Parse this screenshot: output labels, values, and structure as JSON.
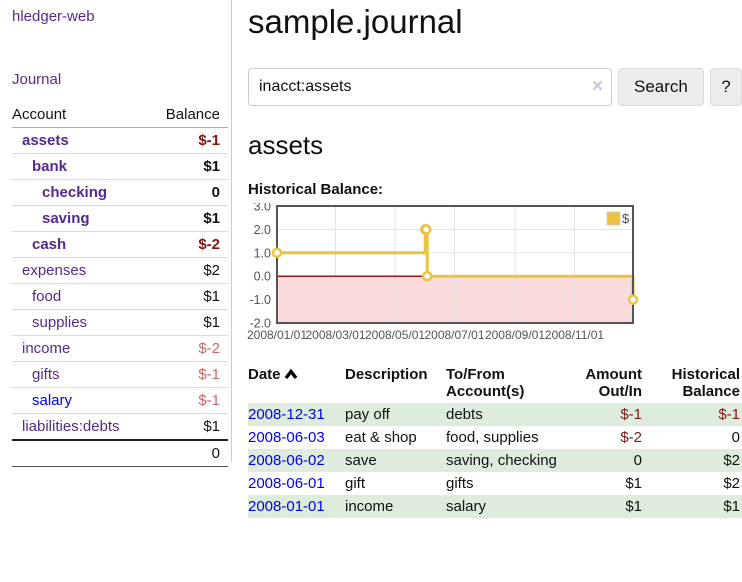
{
  "app": {
    "brand": "hledger-web"
  },
  "sidebar": {
    "journal_link": "Journal",
    "accounts": {
      "headers": {
        "account": "Account",
        "balance": "Balance"
      },
      "rows": [
        {
          "name": "assets",
          "balance": "$-1",
          "depth": 1,
          "bold": true
        },
        {
          "name": "bank",
          "balance": "$1",
          "depth": 2,
          "bold": true
        },
        {
          "name": "checking",
          "balance": "0",
          "depth": 3,
          "bold": true
        },
        {
          "name": "saving",
          "balance": "$1",
          "depth": 3,
          "bold": true
        },
        {
          "name": "cash",
          "balance": "$-2",
          "depth": 2,
          "bold": true
        },
        {
          "name": "expenses",
          "balance": "$2",
          "depth": 1,
          "bold": false
        },
        {
          "name": "food",
          "balance": "$1",
          "depth": 2,
          "bold": false
        },
        {
          "name": "supplies",
          "balance": "$1",
          "depth": 2,
          "bold": false
        },
        {
          "name": "income",
          "balance": "$-2",
          "depth": 1,
          "bold": false
        },
        {
          "name": "gifts",
          "balance": "$-1",
          "depth": 2,
          "bold": false
        },
        {
          "name": "salary",
          "balance": "$-1",
          "depth": 2,
          "bold": false,
          "blue": true
        },
        {
          "name": "liabilities:debts",
          "balance": "$1",
          "depth": 1,
          "bold": false
        }
      ],
      "total": "0"
    }
  },
  "main": {
    "title": "sample.journal",
    "search": {
      "value": "inacct:assets",
      "clear_icon": "×",
      "search_label": "Search",
      "help_label": "?"
    },
    "account_heading": "assets",
    "chart_title": "Historical Balance:"
  },
  "chart_data": {
    "type": "line",
    "steps": true,
    "title": "Historical Balance",
    "x_range": [
      "2008-01-01",
      "2008-12-31"
    ],
    "ylim": [
      -2,
      3
    ],
    "yticks": [
      "3.0",
      "2.0",
      "1.0",
      "0.0",
      "-1.0",
      "-2.0"
    ],
    "xticks": [
      {
        "label": "2008/01/01",
        "date": "2008-01-01"
      },
      {
        "label": "2008/03/01",
        "date": "2008-03-01"
      },
      {
        "label": "2008/05/01",
        "date": "2008-05-01"
      },
      {
        "label": "2008/07/01",
        "date": "2008-07-01"
      },
      {
        "label": "2008/09/01",
        "date": "2008-09-01"
      },
      {
        "label": "2008/11/01",
        "date": "2008-11-01"
      }
    ],
    "series": [
      {
        "name": "$",
        "color": "#edc240",
        "points": [
          {
            "date": "2008-01-01",
            "value": 1
          },
          {
            "date": "2008-06-01",
            "value": 2
          },
          {
            "date": "2008-06-02",
            "value": 2
          },
          {
            "date": "2008-06-03",
            "value": 0
          },
          {
            "date": "2008-12-31",
            "value": -1
          }
        ]
      }
    ],
    "legend": {
      "label": "$",
      "position": "top-right"
    },
    "grid": true,
    "negative_region_color": "#f9dbdb",
    "zero_line_color": "#9e1616",
    "border_color": "#545454",
    "grid_color": "#e3e3e3",
    "tick_label_color": "#545454"
  },
  "register": {
    "headers": [
      "Date",
      "Description",
      "To/From Account(s)",
      "Amount Out/In",
      "Historical Balance"
    ],
    "sort_icon": "chevron-up",
    "rows": [
      {
        "date": "2008-12-31",
        "description": "pay off",
        "accounts": "debts",
        "amount": "$-1",
        "balance": "$-1"
      },
      {
        "date": "2008-06-03",
        "description": "eat & shop",
        "accounts": "food, supplies",
        "amount": "$-2",
        "balance": "0"
      },
      {
        "date": "2008-06-02",
        "description": "save",
        "accounts": "saving, checking",
        "amount": "0",
        "balance": "$2"
      },
      {
        "date": "2008-06-01",
        "description": "gift",
        "accounts": "gifts",
        "amount": "$1",
        "balance": "$2"
      },
      {
        "date": "2008-01-01",
        "description": "income",
        "accounts": "salary",
        "amount": "$1",
        "balance": "$1"
      }
    ]
  }
}
